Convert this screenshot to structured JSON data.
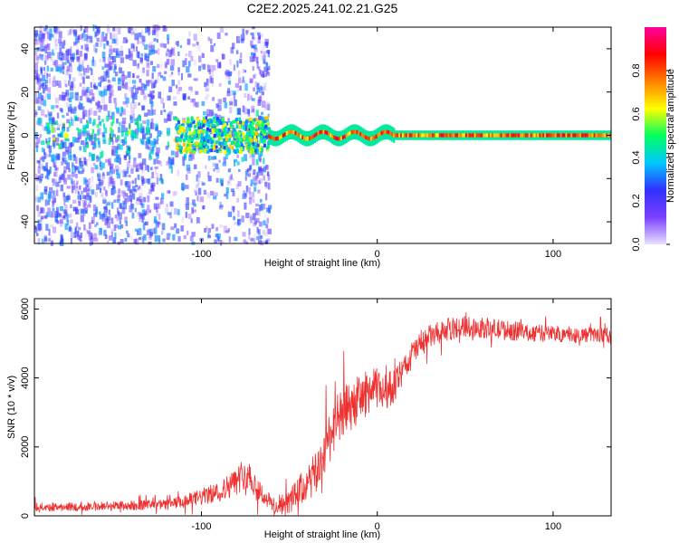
{
  "title": "C2E2.2025.241.02.21.G25",
  "chart_data": [
    {
      "type": "heatmap",
      "xlabel": "Height of straight line (km)",
      "ylabel": "Frequency (Hz)",
      "xlim": [
        -195,
        133
      ],
      "ylim": [
        -50,
        50
      ],
      "xticks": [
        -100,
        0,
        100
      ],
      "xtick_labels": [
        "-100",
        "0",
        "100"
      ],
      "yticks": [
        -40,
        -20,
        0,
        20,
        40
      ],
      "ytick_labels": [
        "-40",
        "-20",
        "0",
        "20",
        "40"
      ],
      "colorbar": {
        "label": "Normalized spectral amplitude",
        "range": [
          0,
          1
        ],
        "ticks": [
          0.0,
          0.2,
          0.4,
          0.6,
          0.8
        ],
        "tick_labels": [
          "0.0",
          "0.2",
          "0.4",
          "0.6",
          "0.8"
        ],
        "colormap": [
          "#e8e0ff",
          "#7b3fff",
          "#3030ff",
          "#00c8ff",
          "#00ff60",
          "#ffff00",
          "#ff8000",
          "#ff0000",
          "#ff00a0"
        ]
      },
      "features": {
        "noise_region_x": [
          -195,
          -62
        ],
        "line_region_x": [
          -62,
          133
        ],
        "line_freq_hz": 0
      }
    },
    {
      "type": "line",
      "xlabel": "Height of straight line (km)",
      "ylabel": "SNR (10 * v/v)",
      "xlim": [
        -195,
        133
      ],
      "ylim": [
        0,
        6300
      ],
      "xticks": [
        -100,
        0,
        100
      ],
      "xtick_labels": [
        "-100",
        "0",
        "100"
      ],
      "yticks": [
        0,
        2000,
        4000,
        6000
      ],
      "ytick_labels": [
        "0",
        "2000",
        "4000",
        "6000"
      ],
      "series": [
        {
          "name": "SNR",
          "color": "#ee3030",
          "x": [
            -195,
            -180,
            -160,
            -140,
            -120,
            -110,
            -100,
            -90,
            -80,
            -75,
            -70,
            -65,
            -60,
            -55,
            -50,
            -45,
            -40,
            -35,
            -30,
            -25,
            -20,
            -15,
            -10,
            -5,
            0,
            5,
            10,
            15,
            20,
            25,
            30,
            40,
            50,
            60,
            70,
            80,
            90,
            100,
            110,
            120,
            133
          ],
          "values": [
            250,
            260,
            280,
            300,
            320,
            400,
            550,
            700,
            1000,
            1300,
            950,
            600,
            350,
            200,
            400,
            700,
            900,
            1200,
            1900,
            2600,
            2900,
            3200,
            3400,
            3600,
            3700,
            3600,
            3800,
            4200,
            4700,
            5000,
            5200,
            5400,
            5500,
            5450,
            5400,
            5350,
            5300,
            5300,
            5250,
            5250,
            5250
          ],
          "noise_amplitude": [
            130,
            130,
            140,
            150,
            160,
            200,
            250,
            300,
            400,
            500,
            400,
            300,
            250,
            250,
            350,
            450,
            550,
            650,
            750,
            800,
            800,
            750,
            700,
            650,
            600,
            550,
            500,
            450,
            400,
            380,
            350,
            330,
            320,
            300,
            300,
            280,
            260,
            250,
            240,
            230,
            220
          ]
        }
      ]
    }
  ]
}
